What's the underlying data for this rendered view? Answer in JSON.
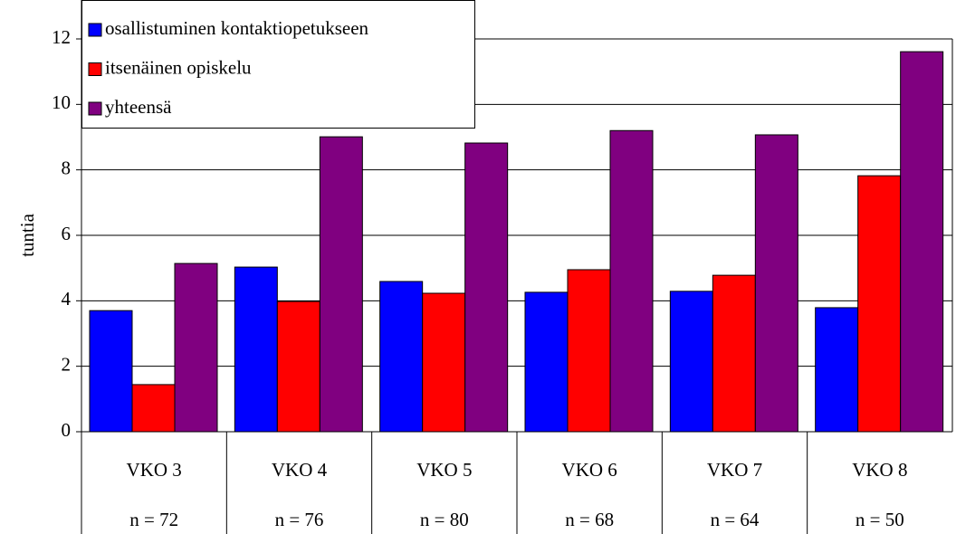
{
  "chart_data": {
    "type": "bar",
    "y_label": "tuntia",
    "categories": [
      "VKO 3",
      "VKO 4",
      "VKO 5",
      "VKO 6",
      "VKO 7",
      "VKO 8"
    ],
    "n_labels": [
      "n = 72",
      "n = 76",
      "n = 80",
      "n = 68",
      "n = 64",
      "n = 50"
    ],
    "series": [
      {
        "name": "osallistuminen kontaktiopetukseen",
        "color": "#0000ff",
        "values": [
          3.7,
          5.03,
          4.59,
          4.26,
          4.29,
          3.79
        ]
      },
      {
        "name": "itsenäinen opiskelu",
        "color": "#ff0000",
        "values": [
          1.44,
          3.98,
          4.23,
          4.95,
          4.78,
          7.82
        ]
      },
      {
        "name": "yhteensä",
        "color": "#800080",
        "values": [
          5.14,
          9.01,
          8.82,
          9.2,
          9.07,
          11.61
        ]
      }
    ],
    "ylim": [
      0,
      12
    ],
    "yticks": [
      0,
      2,
      4,
      6,
      8,
      10,
      12
    ],
    "grid": true,
    "legend": "top-left"
  }
}
